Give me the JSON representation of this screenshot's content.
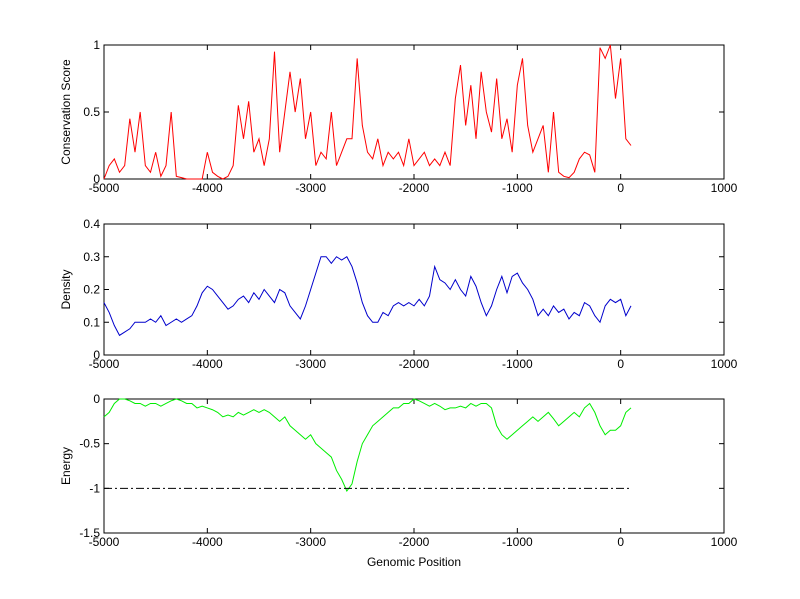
{
  "chart_data": [
    {
      "type": "line",
      "ylabel": "Conservation Score",
      "x": [
        -5000,
        -4950,
        -4900,
        -4850,
        -4800,
        -4750,
        -4700,
        -4650,
        -4600,
        -4550,
        -4500,
        -4450,
        -4400,
        -4350,
        -4300,
        -4250,
        -4200,
        -4150,
        -4100,
        -4050,
        -4000,
        -3950,
        -3900,
        -3850,
        -3800,
        -3750,
        -3700,
        -3650,
        -3600,
        -3550,
        -3500,
        -3450,
        -3400,
        -3350,
        -3300,
        -3250,
        -3200,
        -3150,
        -3100,
        -3050,
        -3000,
        -2950,
        -2900,
        -2850,
        -2800,
        -2750,
        -2700,
        -2650,
        -2600,
        -2550,
        -2500,
        -2450,
        -2400,
        -2350,
        -2300,
        -2250,
        -2200,
        -2150,
        -2100,
        -2050,
        -2000,
        -1950,
        -1900,
        -1850,
        -1800,
        -1750,
        -1700,
        -1650,
        -1600,
        -1550,
        -1500,
        -1450,
        -1400,
        -1350,
        -1300,
        -1250,
        -1200,
        -1150,
        -1100,
        -1050,
        -1000,
        -950,
        -900,
        -850,
        -800,
        -750,
        -700,
        -650,
        -600,
        -550,
        -500,
        -450,
        -400,
        -350,
        -300,
        -250,
        -200,
        -150,
        -100,
        -50,
        0,
        50,
        100
      ],
      "series": [
        {
          "color": "#ff0000",
          "values": [
            0,
            0.1,
            0.15,
            0.05,
            0.1,
            0.45,
            0.2,
            0.5,
            0.1,
            0.05,
            0.2,
            0.02,
            0.1,
            0.5,
            0.02,
            0.01,
            0,
            0,
            0,
            0,
            0.2,
            0.05,
            0.02,
            0,
            0.02,
            0.1,
            0.55,
            0.3,
            0.58,
            0.2,
            0.3,
            0.1,
            0.3,
            0.95,
            0.2,
            0.5,
            0.8,
            0.5,
            0.75,
            0.3,
            0.5,
            0.1,
            0.2,
            0.15,
            0.5,
            0.1,
            0.2,
            0.3,
            0.3,
            0.9,
            0.4,
            0.2,
            0.15,
            0.3,
            0.1,
            0.2,
            0.15,
            0.2,
            0.1,
            0.3,
            0.1,
            0.15,
            0.2,
            0.1,
            0.15,
            0.1,
            0.2,
            0.1,
            0.6,
            0.85,
            0.4,
            0.7,
            0.3,
            0.8,
            0.5,
            0.35,
            0.75,
            0.3,
            0.45,
            0.2,
            0.7,
            0.9,
            0.4,
            0.2,
            0.3,
            0.4,
            0.05,
            0.5,
            0.05,
            0.02,
            0.01,
            0.05,
            0.15,
            0.2,
            0.18,
            0.05,
            0.98,
            0.9,
            1,
            0.6,
            0.9,
            0.3,
            0.25
          ]
        }
      ],
      "xlim": [
        -5000,
        1000
      ],
      "xticks": [
        -5000,
        -4000,
        -3000,
        -2000,
        -1000,
        0,
        1000
      ],
      "ylim": [
        0,
        1
      ],
      "yticks": [
        0,
        0.5,
        1
      ]
    },
    {
      "type": "line",
      "ylabel": "Density",
      "x": [
        -5000,
        -4950,
        -4900,
        -4850,
        -4800,
        -4750,
        -4700,
        -4650,
        -4600,
        -4550,
        -4500,
        -4450,
        -4400,
        -4350,
        -4300,
        -4250,
        -4200,
        -4150,
        -4100,
        -4050,
        -4000,
        -3950,
        -3900,
        -3850,
        -3800,
        -3750,
        -3700,
        -3650,
        -3600,
        -3550,
        -3500,
        -3450,
        -3400,
        -3350,
        -3300,
        -3250,
        -3200,
        -3150,
        -3100,
        -3050,
        -3000,
        -2950,
        -2900,
        -2850,
        -2800,
        -2750,
        -2700,
        -2650,
        -2600,
        -2550,
        -2500,
        -2450,
        -2400,
        -2350,
        -2300,
        -2250,
        -2200,
        -2150,
        -2100,
        -2050,
        -2000,
        -1950,
        -1900,
        -1850,
        -1800,
        -1750,
        -1700,
        -1650,
        -1600,
        -1550,
        -1500,
        -1450,
        -1400,
        -1350,
        -1300,
        -1250,
        -1200,
        -1150,
        -1100,
        -1050,
        -1000,
        -950,
        -900,
        -850,
        -800,
        -750,
        -700,
        -650,
        -600,
        -550,
        -500,
        -450,
        -400,
        -350,
        -300,
        -250,
        -200,
        -150,
        -100,
        -50,
        0,
        50,
        100
      ],
      "series": [
        {
          "color": "#0000cc",
          "values": [
            0.16,
            0.13,
            0.09,
            0.06,
            0.07,
            0.08,
            0.1,
            0.1,
            0.1,
            0.11,
            0.1,
            0.12,
            0.09,
            0.1,
            0.11,
            0.1,
            0.11,
            0.12,
            0.15,
            0.19,
            0.21,
            0.2,
            0.18,
            0.16,
            0.14,
            0.15,
            0.17,
            0.18,
            0.16,
            0.19,
            0.17,
            0.2,
            0.18,
            0.16,
            0.2,
            0.19,
            0.15,
            0.13,
            0.11,
            0.15,
            0.2,
            0.25,
            0.3,
            0.3,
            0.28,
            0.3,
            0.29,
            0.3,
            0.27,
            0.22,
            0.16,
            0.12,
            0.1,
            0.1,
            0.13,
            0.12,
            0.15,
            0.16,
            0.15,
            0.16,
            0.15,
            0.17,
            0.15,
            0.18,
            0.27,
            0.23,
            0.22,
            0.2,
            0.23,
            0.2,
            0.18,
            0.24,
            0.21,
            0.16,
            0.12,
            0.15,
            0.2,
            0.24,
            0.19,
            0.24,
            0.25,
            0.22,
            0.2,
            0.17,
            0.12,
            0.14,
            0.12,
            0.15,
            0.13,
            0.14,
            0.11,
            0.13,
            0.12,
            0.16,
            0.15,
            0.12,
            0.1,
            0.15,
            0.17,
            0.16,
            0.17,
            0.12,
            0.15
          ]
        }
      ],
      "xlim": [
        -5000,
        1000
      ],
      "xticks": [
        -5000,
        -4000,
        -3000,
        -2000,
        -1000,
        0,
        1000
      ],
      "ylim": [
        0,
        0.4
      ],
      "yticks": [
        0,
        0.1,
        0.2,
        0.3,
        0.4
      ]
    },
    {
      "type": "line",
      "ylabel": "Energy",
      "xlabel": "Genomic Position",
      "x": [
        -5000,
        -4950,
        -4900,
        -4850,
        -4800,
        -4750,
        -4700,
        -4650,
        -4600,
        -4550,
        -4500,
        -4450,
        -4400,
        -4350,
        -4300,
        -4250,
        -4200,
        -4150,
        -4100,
        -4050,
        -4000,
        -3950,
        -3900,
        -3850,
        -3800,
        -3750,
        -3700,
        -3650,
        -3600,
        -3550,
        -3500,
        -3450,
        -3400,
        -3350,
        -3300,
        -3250,
        -3200,
        -3150,
        -3100,
        -3050,
        -3000,
        -2950,
        -2900,
        -2850,
        -2800,
        -2750,
        -2700,
        -2650,
        -2600,
        -2550,
        -2500,
        -2450,
        -2400,
        -2350,
        -2300,
        -2250,
        -2200,
        -2150,
        -2100,
        -2050,
        -2000,
        -1950,
        -1900,
        -1850,
        -1800,
        -1750,
        -1700,
        -1650,
        -1600,
        -1550,
        -1500,
        -1450,
        -1400,
        -1350,
        -1300,
        -1250,
        -1200,
        -1150,
        -1100,
        -1050,
        -1000,
        -950,
        -900,
        -850,
        -800,
        -750,
        -700,
        -650,
        -600,
        -550,
        -500,
        -450,
        -400,
        -350,
        -300,
        -250,
        -200,
        -150,
        -100,
        -50,
        0,
        50,
        100
      ],
      "series": [
        {
          "color": "#00ee00",
          "values": [
            -0.2,
            -0.15,
            -0.05,
            0,
            0,
            -0.02,
            -0.05,
            -0.05,
            -0.08,
            -0.05,
            -0.05,
            -0.08,
            -0.05,
            -0.02,
            0,
            -0.02,
            -0.05,
            -0.05,
            -0.1,
            -0.08,
            -0.1,
            -0.12,
            -0.15,
            -0.2,
            -0.18,
            -0.2,
            -0.15,
            -0.18,
            -0.15,
            -0.12,
            -0.15,
            -0.12,
            -0.15,
            -0.2,
            -0.25,
            -0.2,
            -0.3,
            -0.35,
            -0.4,
            -0.45,
            -0.4,
            -0.5,
            -0.55,
            -0.6,
            -0.65,
            -0.8,
            -0.9,
            -1.03,
            -0.95,
            -0.7,
            -0.5,
            -0.4,
            -0.3,
            -0.25,
            -0.2,
            -0.15,
            -0.1,
            -0.1,
            -0.05,
            -0.05,
            0,
            -0.02,
            -0.05,
            -0.08,
            -0.05,
            -0.08,
            -0.12,
            -0.1,
            -0.1,
            -0.08,
            -0.1,
            -0.05,
            -0.08,
            -0.05,
            -0.05,
            -0.1,
            -0.3,
            -0.4,
            -0.45,
            -0.4,
            -0.35,
            -0.3,
            -0.25,
            -0.2,
            -0.25,
            -0.2,
            -0.15,
            -0.22,
            -0.3,
            -0.25,
            -0.2,
            -0.15,
            -0.2,
            -0.1,
            -0.05,
            -0.15,
            -0.3,
            -0.4,
            -0.35,
            -0.35,
            -0.3,
            -0.15,
            -0.1
          ]
        }
      ],
      "reference_line": {
        "x": [
          -5000,
          100
        ],
        "y": -1,
        "color": "#000000",
        "style": "dashdot"
      },
      "xlim": [
        -5000,
        1000
      ],
      "xticks": [
        -5000,
        -4000,
        -3000,
        -2000,
        -1000,
        0,
        1000
      ],
      "ylim": [
        -1.5,
        0
      ],
      "yticks": [
        -1.5,
        -1,
        -0.5,
        0
      ]
    }
  ]
}
